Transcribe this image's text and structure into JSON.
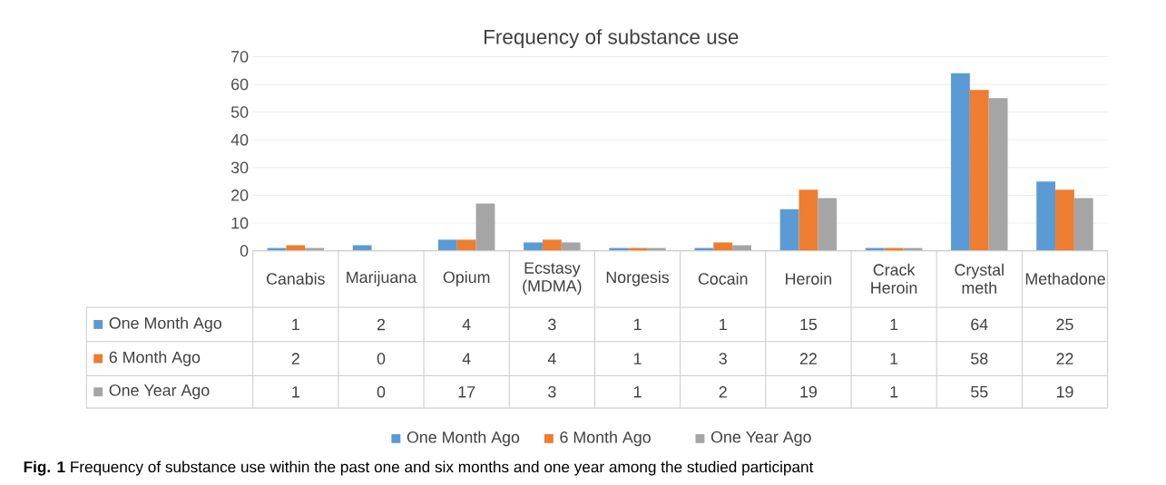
{
  "chart_data": {
    "type": "bar",
    "title": "Frequency of substance use",
    "categories": [
      "Canabis",
      "Marijuana",
      "Opium",
      "Ecstasy (MDMA)",
      "Norgesis",
      "Cocain",
      "Heroin",
      "Crack Heroin",
      "Crystal meth",
      "Methadone"
    ],
    "series": [
      {
        "name": "One Month Ago",
        "color": "#5b9bd5",
        "values": [
          1,
          2,
          4,
          3,
          1,
          1,
          15,
          1,
          64,
          25
        ]
      },
      {
        "name": "6 Month Ago",
        "color": "#ed7d31",
        "values": [
          2,
          0,
          4,
          4,
          1,
          3,
          22,
          1,
          58,
          22
        ]
      },
      {
        "name": "One Year Ago",
        "color": "#a5a5a5",
        "values": [
          1,
          0,
          17,
          3,
          1,
          2,
          19,
          1,
          55,
          19
        ]
      }
    ],
    "ylim": [
      0,
      70
    ],
    "yticks": [
      0,
      10,
      20,
      30,
      40,
      50,
      60,
      70
    ],
    "grid": "y",
    "legend": "bottom",
    "data_labels": true,
    "annotations": [
      "**Fig. 1** Frequency of substance use within the past one and six months and one year among the studied participant"
    ]
  }
}
